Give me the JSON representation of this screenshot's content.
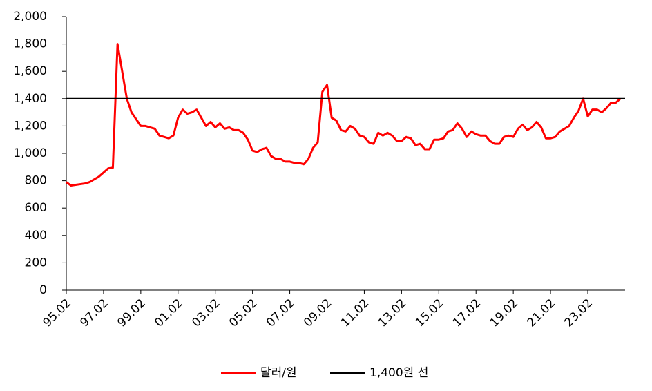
{
  "chart_data": {
    "type": "line",
    "categories": [
      "95.02",
      null,
      null,
      null,
      null,
      null,
      null,
      null,
      "97.02",
      null,
      null,
      null,
      null,
      null,
      null,
      null,
      "99.02",
      null,
      null,
      null,
      null,
      null,
      null,
      null,
      "01.02",
      null,
      null,
      null,
      null,
      null,
      null,
      null,
      "03.02",
      null,
      null,
      null,
      null,
      null,
      null,
      null,
      "05.02",
      null,
      null,
      null,
      null,
      null,
      null,
      null,
      "07.02",
      null,
      null,
      null,
      null,
      null,
      null,
      null,
      "09.02",
      null,
      null,
      null,
      null,
      null,
      null,
      null,
      "11.02",
      null,
      null,
      null,
      null,
      null,
      null,
      null,
      "13.02",
      null,
      null,
      null,
      null,
      null,
      null,
      null,
      "15.02",
      null,
      null,
      null,
      null,
      null,
      null,
      null,
      "17.02",
      null,
      null,
      null,
      null,
      null,
      null,
      null,
      "19.02",
      null,
      null,
      null,
      null,
      null,
      null,
      null,
      "21.02",
      null,
      null,
      null,
      null,
      null,
      null,
      null,
      "23.02",
      null,
      null,
      null,
      null,
      null,
      null,
      null
    ],
    "series": [
      {
        "name": "달러/원",
        "color": "#ff0000",
        "values": [
          790,
          765,
          770,
          775,
          780,
          790,
          810,
          830,
          860,
          890,
          895,
          1800,
          1600,
          1400,
          1300,
          1250,
          1200,
          1200,
          1190,
          1180,
          1130,
          1120,
          1110,
          1130,
          1260,
          1320,
          1290,
          1300,
          1320,
          1260,
          1200,
          1230,
          1190,
          1220,
          1180,
          1190,
          1170,
          1170,
          1150,
          1100,
          1020,
          1010,
          1030,
          1040,
          980,
          960,
          960,
          940,
          940,
          930,
          930,
          920,
          960,
          1040,
          1080,
          1450,
          1500,
          1260,
          1240,
          1170,
          1160,
          1200,
          1180,
          1130,
          1120,
          1080,
          1070,
          1150,
          1130,
          1150,
          1130,
          1090,
          1090,
          1120,
          1110,
          1060,
          1070,
          1030,
          1030,
          1100,
          1100,
          1110,
          1160,
          1170,
          1220,
          1180,
          1120,
          1160,
          1140,
          1130,
          1130,
          1090,
          1070,
          1070,
          1120,
          1130,
          1120,
          1180,
          1210,
          1170,
          1190,
          1230,
          1190,
          1110,
          1110,
          1120,
          1160,
          1180,
          1200,
          1260,
          1310,
          1400,
          1270,
          1320,
          1320,
          1300,
          1330,
          1370,
          1370,
          1400
        ]
      }
    ],
    "reference_line": {
      "name": "1,400원 선",
      "value": 1400,
      "color": "#000000"
    },
    "ylim": [
      0,
      2000
    ],
    "yticks": [
      0,
      200,
      400,
      600,
      800,
      {
        "value": 1000,
        "label": "1,000"
      },
      {
        "value": 1200,
        "label": "1,200"
      },
      {
        "value": 1400,
        "label": "1,400"
      },
      {
        "value": 1600,
        "label": "1,600"
      },
      {
        "value": 1800,
        "label": "1,800"
      },
      {
        "value": 2000,
        "label": "2,000"
      }
    ]
  }
}
